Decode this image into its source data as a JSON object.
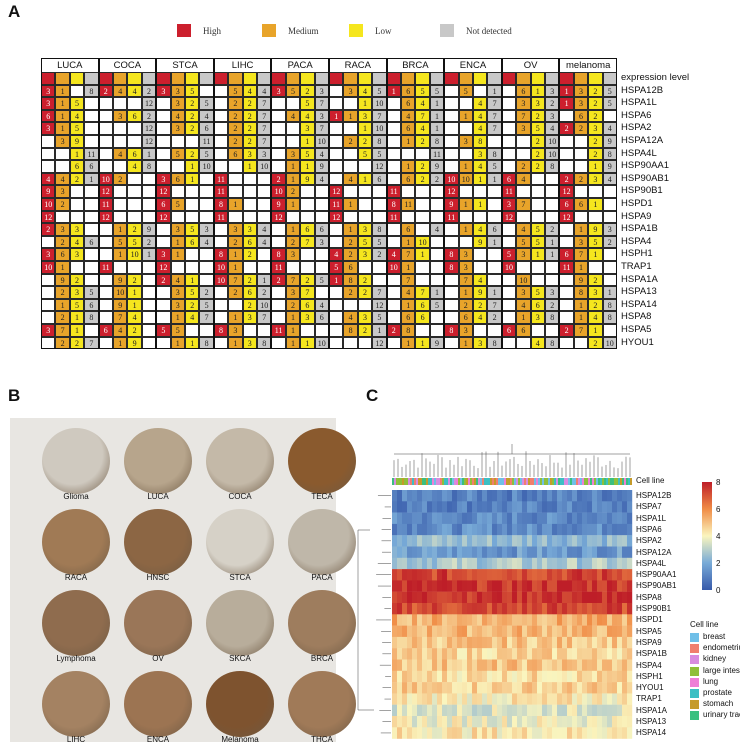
{
  "panels": {
    "a": "A",
    "b": "B",
    "c": "C"
  },
  "legend": [
    {
      "label": "High",
      "color": "#cc1f2d"
    },
    {
      "label": "Medium",
      "color": "#e8a42a"
    },
    {
      "label": "Low",
      "color": "#f5e61e"
    },
    {
      "label": "Not detected",
      "color": "#c8c8c8"
    }
  ],
  "cancers": [
    "LUCA",
    "COCA",
    "STCA",
    "LIHC",
    "PACA",
    "RACA",
    "BRCA",
    "ENCA",
    "OV",
    "melanoma"
  ],
  "expression_label": "expression level",
  "genes": [
    "HSPA12B",
    "HSPA1L",
    "HSPA6",
    "HSPA2",
    "HSPA12A",
    "HSPA4L",
    "HSP90AA1",
    "HSP90AB1",
    "HSP90B1",
    "HSPD1",
    "HSPA9",
    "HSPA1B",
    "HSPA4",
    "HSPH1",
    "TRAP1",
    "HSPA1A",
    "HSPA13",
    "HSPA14",
    "HSPA8",
    "HSPA5",
    "HYOU1"
  ],
  "table_rows": [
    [
      "3 1 . 8",
      "2 4 4 2",
      "3 3 5 .",
      ". 5 4 4",
      "3 5 2 3",
      ". 3 4 5",
      "1 6 5 5",
      ". 5 . 1",
      ". 6 1 3",
      "1 3 2 5"
    ],
    [
      "3 1 5 .",
      ". . . 12",
      ". 3 2 5",
      ". 2 2 7",
      ". . 5 7",
      ". . 1 10",
      ". 6 4 1",
      ". . 4 7",
      ". 3 3 2",
      "1 3 2 5"
    ],
    [
      "6 1 4 .",
      ". 3 6 2",
      ". 4 2 4",
      ". 2 2 7",
      ". 4 4 3",
      "1 1 3 7",
      ". 4 7 1",
      ". 1 4 7",
      ". 7 2 3",
      ". 6 2 ."
    ],
    [
      "3 1 5 .",
      ". . . 12",
      ". 3 2 6",
      ". 2 2 7",
      ". . 3 7",
      ". . 1 10",
      ". 6 4 1",
      ". . 4 7",
      ". 3 5 4",
      "2 2 3 4"
    ],
    [
      ". 3 9 .",
      ". . . 12",
      ". . . 11",
      ". 2 2 7",
      ". . 1 10",
      ". 2 2 8",
      ". 1 2 8",
      ". 3 8 .",
      ". . 2 10",
      ". . 2 9"
    ],
    [
      ". . 1 11",
      ". 4 6 1",
      ". 5 2 5",
      ". 6 3 3",
      ". 3 5 4",
      ". . 5 5",
      ". . . 11",
      ". . 3 8",
      ". . 2 10",
      ". . 2 8"
    ],
    [
      ". . 6 6",
      ". . 4 8",
      ". . 1 10",
      ". . 1 10",
      ". 1 1 9",
      ". . . 12",
      ". 1 2 9",
      ". 1 4 5",
      ". 2 2 8",
      ". . 1 9"
    ],
    [
      "4 4 2 1",
      "10 2 . .",
      "3 6 1 .",
      "11 . . .",
      "2 1 9 4",
      ". 4 1 6",
      ". 6 2 2",
      "10 10 1 1",
      "6 4 . .",
      "2 2 3 4"
    ],
    [
      "9 3 . .",
      "12 . . .",
      "12 . . .",
      "11 . . .",
      "10 2 . .",
      "12 . . .",
      "11 . . .",
      "12 . . .",
      "11 . . .",
      "12 . . ."
    ],
    [
      "10 2 . .",
      "11 . . .",
      "6 5 . .",
      "8 1 . .",
      "9 1 . .",
      "11 1 . .",
      "8 11 . .",
      "9 1 1 .",
      "3 7 . .",
      "6 6 1 ."
    ],
    [
      "12 . . .",
      "12 . . .",
      "12 . . .",
      "11 . . .",
      "12 . . .",
      "12 . . .",
      "11 . . .",
      "11 . . .",
      "12 . . .",
      "12 . . ."
    ],
    [
      "2 3 3 .",
      ". 1 2 9",
      ". 3 5 3",
      ". 3 3 4",
      ". 1 6 6",
      ". 1 3 8",
      ". 6 . 4",
      ". 1 4 6",
      ". 4 5 2",
      ". 1 9 3"
    ],
    [
      ". 2 4 6",
      ". 5 5 2",
      ". 1 6 4",
      ". 2 6 4",
      ". 2 7 3",
      ". 2 5 5",
      ". 1 10 .",
      ". . 9 1",
      ". 5 5 1",
      ". 3 5 2"
    ],
    [
      "3 6 3 .",
      ". 1 10 1",
      "3 1 . .",
      "8 1 2 .",
      "8 3 . .",
      "4 2 3 2",
      "4 7 1 .",
      "8 3 . .",
      "5 3 1 1",
      "6 7 1 ."
    ],
    [
      "10 1 . .",
      "11 . . .",
      "12 . . .",
      "10 1 . .",
      "11 . . .",
      "5 6 . .",
      "10 1 . .",
      "8 3 . .",
      "10 . . .",
      "11 1 . ."
    ],
    [
      ". 9 2 .",
      ". 9 2 .",
      "2 4 1 .",
      "10 7 2 1",
      "2 7 2 5",
      "1 8 2 .",
      ". 7 . .",
      ". 7 4 .",
      ". 10 . .",
      ". 9 2 ."
    ],
    [
      ". 2 3 5",
      ". 10 1 .",
      ". 3 5 2",
      ". 2 6 2",
      ". 3 7 .",
      ". 2 2 7",
      ". 4 7 1",
      ". 1 9 1",
      ". 3 5 3",
      ". 8 3 1"
    ],
    [
      ". 1 5 6",
      ". 9 1 .",
      ". 3 2 5",
      ". . 2 10",
      ". 2 6 4",
      ". . . 12",
      ". 1 6 5",
      ". 2 2 7",
      ". 4 6 2",
      ". 1 2 8"
    ],
    [
      ". 2 1 8",
      ". 7 4 .",
      ". 1 4 7",
      ". 1 3 7",
      ". 1 3 6",
      ". 4 3 5",
      ". 6 6 .",
      ". 6 4 2",
      ". 1 3 8",
      ". 1 4 8"
    ],
    [
      "3 7 1 .",
      "6 4 2 .",
      "5 5 . .",
      "8 3 . .",
      "11 1 . .",
      ". 8 2 1",
      "2 8 . .",
      "8 3 . .",
      "6 6 . .",
      "2 7 1 ."
    ],
    [
      ". 2 2 7",
      ". 1 9 .",
      ". 1 1 8",
      ". 1 3 8",
      ". 1 1 10",
      ". . . 12",
      ". 1 1 9",
      ". 1 3 8",
      ". . 4 8",
      ". . 2 10"
    ]
  ],
  "tissues": [
    [
      "Glioma",
      "LUCA",
      "COCA",
      "TECA"
    ],
    [
      "RACA",
      "HNSC",
      "STCA",
      "PACA"
    ],
    [
      "Lymphoma",
      "OV",
      "SKCA",
      "BRCA"
    ],
    [
      "LIHC",
      "ENCA",
      "Melanoma",
      "THCA"
    ]
  ],
  "heatmap": {
    "cell_line_label": "Cell line",
    "genes": [
      "HSPA12B",
      "HSPA7",
      "HSPA1L",
      "HSPA6",
      "HSPA2",
      "HSPA12A",
      "HSPA4L",
      "HSP90AA1",
      "HSP90AB1",
      "HSPA8",
      "HSP90B1",
      "HSPD1",
      "HSPA5",
      "HSPA9",
      "HSPA1B",
      "HSPA4",
      "HSPH1",
      "HYOU1",
      "TRAP1",
      "HSPA1A",
      "HSPA13",
      "HSPA14"
    ],
    "levels": [
      1.0,
      1.0,
      1.2,
      1.3,
      2.5,
      1.6,
      2.8,
      7.3,
      7.6,
      7.7,
      7.2,
      5.3,
      5.2,
      4.9,
      4.6,
      4.9,
      4.5,
      4.7,
      4.2,
      3.6,
      3.9,
      4.3
    ],
    "scale_ticks": [
      "8",
      "6",
      "4",
      "2",
      "0"
    ],
    "cell_line_title": "Cell line",
    "cell_lines": [
      {
        "name": "breast",
        "color": "#6fbfe8"
      },
      {
        "name": "endometrium",
        "color": "#f07f6e"
      },
      {
        "name": "kidney",
        "color": "#d88ce0"
      },
      {
        "name": "large intestine",
        "color": "#8fbf3a"
      },
      {
        "name": "lung",
        "color": "#ee7fd6"
      },
      {
        "name": "prostate",
        "color": "#3bbfc4"
      },
      {
        "name": "stomach",
        "color": "#c59b2a"
      },
      {
        "name": "urinary tract",
        "color": "#3ac080"
      }
    ]
  }
}
